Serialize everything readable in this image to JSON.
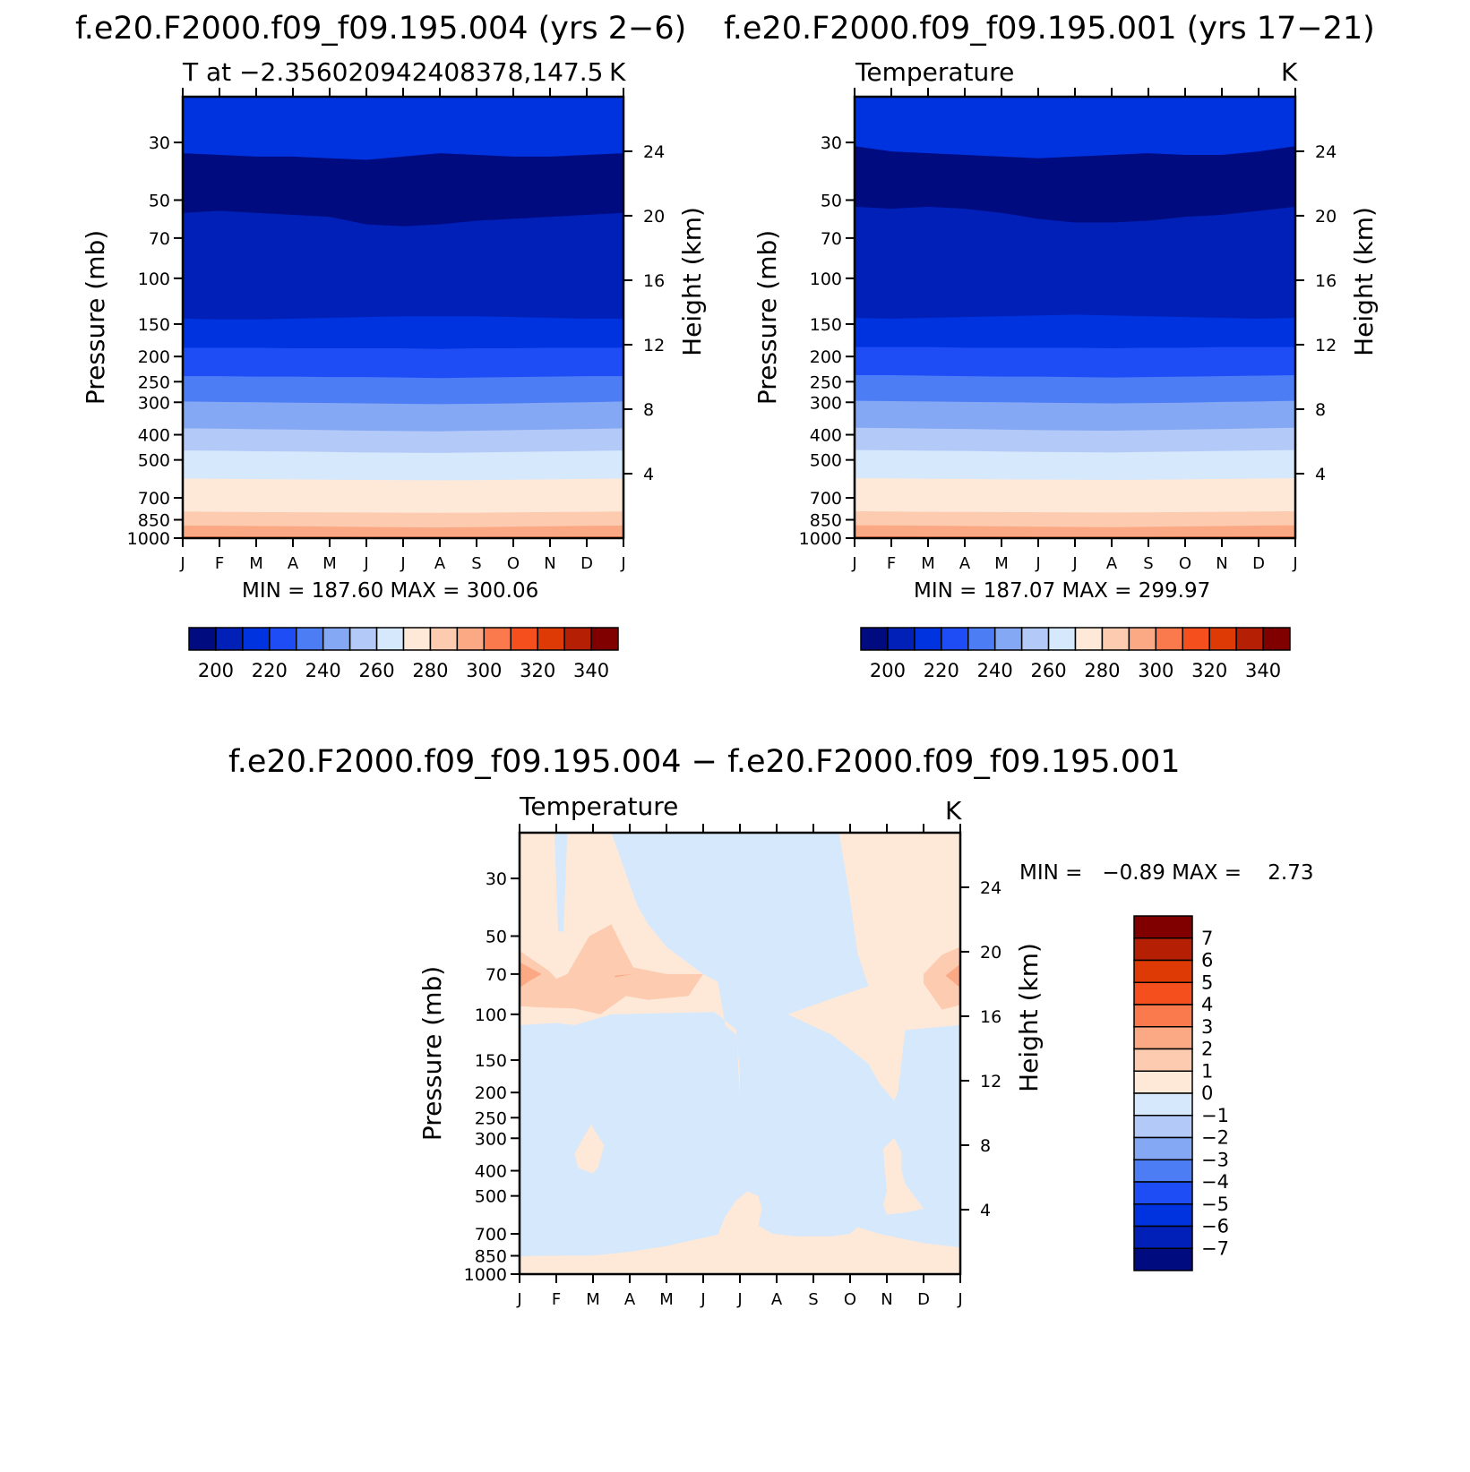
{
  "panels": [
    {
      "title": "f.e20.F2000.f09_f09.195.004 (yrs 2−6)",
      "left_string": "T at −2.356020942408378,147.5",
      "right_string": "K",
      "minmax": "MIN =  187.60 MAX =  300.06"
    },
    {
      "title": "f.e20.F2000.f09_f09.195.001 (yrs 17−21)",
      "left_string": "Temperature",
      "right_string": "K",
      "minmax": "MIN =  187.07 MAX =  299.97"
    },
    {
      "title": "f.e20.F2000.f09_f09.195.004 − f.e20.F2000.f09_f09.195.001",
      "left_string": "Temperature",
      "right_string": "K",
      "minmax": "MIN =   −0.89 MAX =    2.73"
    }
  ],
  "axes": {
    "ylabel_left": "Pressure (mb)",
    "ylabel_right": "Height (km)",
    "pressure_ticks": [
      "30",
      "50",
      "70",
      "100",
      "150",
      "200",
      "250",
      "300",
      "400",
      "500",
      "700",
      "850",
      "1000"
    ],
    "height_ticks": [
      "24",
      "20",
      "16",
      "12",
      "8",
      "4"
    ],
    "month_ticks": [
      "J",
      "F",
      "M",
      "A",
      "M",
      "J",
      "J",
      "A",
      "S",
      "O",
      "N",
      "D",
      "J"
    ]
  },
  "colorbar_abs": {
    "labels": [
      "200",
      "220",
      "240",
      "260",
      "280",
      "300",
      "320",
      "340"
    ],
    "colors": [
      "#000b80",
      "#0020b8",
      "#0033e0",
      "#1f4df5",
      "#4d7df5",
      "#85a8f5",
      "#b3c9f7",
      "#d6e8fb",
      "#fee9d9",
      "#fccbb0",
      "#fba885",
      "#fa7a4d",
      "#f54f1e",
      "#de3a05",
      "#b52005",
      "#800000"
    ]
  },
  "colorbar_diff": {
    "labels": [
      "7",
      "6",
      "5",
      "4",
      "3",
      "2",
      "1",
      "0",
      "−1",
      "−2",
      "−3",
      "−4",
      "−5",
      "−6",
      "−7"
    ],
    "colors": [
      "#800000",
      "#b52005",
      "#de3a05",
      "#f54f1e",
      "#fa7a4d",
      "#fba885",
      "#fccbb0",
      "#fee9d9",
      "#d6e8fb",
      "#b3c9f7",
      "#85a8f5",
      "#4d7df5",
      "#1f4df5",
      "#0033e0",
      "#0020b8",
      "#000b80"
    ]
  },
  "chart_data": [
    {
      "type": "heatmap",
      "title": "f.e20.F2000.f09_f09.195.004 (yrs 2−6)",
      "subtitle": "T at −2.356020942408378,147.5",
      "units": "K",
      "xlabel": "",
      "ylabel": "Pressure (mb)",
      "ylabel_right": "Height (km)",
      "x_categories": [
        "J",
        "F",
        "M",
        "A",
        "M",
        "J",
        "J",
        "A",
        "S",
        "O",
        "N",
        "D",
        "J"
      ],
      "y_scale": "log",
      "y_range": [
        1000,
        20
      ],
      "levels": [
        190,
        200,
        210,
        220,
        230,
        240,
        250,
        260,
        270,
        280,
        290,
        300
      ],
      "level_boundaries_mb": [
        {
          "level": 200,
          "p": [
            33,
            33.5,
            34,
            34,
            34.5,
            35,
            34,
            33,
            33.5,
            34,
            34,
            33.5,
            33
          ]
        },
        {
          "level": 190,
          "p": [
            56,
            55,
            56,
            57,
            58,
            62,
            63,
            62,
            60,
            59,
            58,
            57,
            56
          ]
        },
        {
          "level": 200,
          "p": [
            143,
            144,
            144,
            143,
            142,
            141,
            140,
            140,
            140,
            141,
            142,
            143,
            143
          ]
        },
        {
          "level": 210,
          "p": [
            185,
            185,
            185,
            186,
            186,
            186,
            186,
            187,
            186,
            186,
            185,
            185,
            185
          ]
        },
        {
          "level": 220,
          "p": [
            238,
            238,
            239,
            239,
            240,
            240,
            241,
            242,
            241,
            240,
            239,
            238,
            238
          ]
        },
        {
          "level": 230,
          "p": [
            298,
            299,
            300,
            301,
            302,
            303,
            304,
            305,
            304,
            303,
            301,
            300,
            298
          ]
        },
        {
          "level": 240,
          "p": [
            378,
            379,
            381,
            382,
            384,
            386,
            387,
            388,
            386,
            384,
            382,
            380,
            378
          ]
        },
        {
          "level": 250,
          "p": [
            460,
            461,
            463,
            464,
            466,
            468,
            469,
            470,
            468,
            466,
            464,
            462,
            460
          ]
        },
        {
          "level": 260,
          "p": [
            590,
            591,
            593,
            594,
            596,
            597,
            598,
            599,
            598,
            596,
            594,
            592,
            590
          ]
        },
        {
          "level": 270,
          "p": [
            790,
            792,
            794,
            795,
            796,
            797,
            798,
            799,
            798,
            796,
            794,
            792,
            790
          ]
        },
        {
          "level": 280,
          "p": [
            895,
            896,
            898,
            900,
            903,
            906,
            908,
            910,
            907,
            904,
            900,
            897,
            895
          ]
        },
        {
          "level": 290,
          "p": [
            985,
            985,
            986,
            986,
            986,
            987,
            987,
            987,
            987,
            986,
            986,
            985,
            985
          ]
        }
      ],
      "min": 187.6,
      "max": 300.06
    },
    {
      "type": "heatmap",
      "title": "f.e20.F2000.f09_f09.195.001 (yrs 17−21)",
      "subtitle": "Temperature",
      "units": "K",
      "xlabel": "",
      "ylabel": "Pressure (mb)",
      "ylabel_right": "Height (km)",
      "x_categories": [
        "J",
        "F",
        "M",
        "A",
        "M",
        "J",
        "J",
        "A",
        "S",
        "O",
        "N",
        "D",
        "J"
      ],
      "y_scale": "log",
      "y_range": [
        1000,
        20
      ],
      "levels": [
        190,
        200,
        210,
        220,
        230,
        240,
        250,
        260,
        270,
        280,
        290,
        300
      ],
      "level_boundaries_mb": [
        {
          "level": 200,
          "p": [
            31,
            32.5,
            33,
            33.5,
            34,
            34.5,
            34,
            33.5,
            33,
            33.5,
            33.5,
            32.5,
            31
          ]
        },
        {
          "level": 190,
          "p": [
            53,
            54,
            53,
            54,
            56,
            59,
            61,
            61,
            60,
            58,
            57,
            55,
            53
          ]
        },
        {
          "level": 200,
          "p": [
            142,
            143,
            142,
            141,
            140,
            139,
            138,
            139,
            140,
            141,
            142,
            143,
            142
          ]
        },
        {
          "level": 210,
          "p": [
            184,
            184,
            184,
            185,
            185,
            185,
            185,
            186,
            185,
            185,
            184,
            184,
            184
          ]
        },
        {
          "level": 220,
          "p": [
            236,
            236,
            237,
            238,
            239,
            239,
            240,
            241,
            240,
            239,
            238,
            237,
            236
          ]
        },
        {
          "level": 230,
          "p": [
            296,
            297,
            298,
            299,
            300,
            301,
            302,
            303,
            302,
            301,
            299,
            298,
            296
          ]
        },
        {
          "level": 240,
          "p": [
            376,
            377,
            379,
            380,
            382,
            384,
            385,
            386,
            384,
            382,
            380,
            378,
            376
          ]
        },
        {
          "level": 250,
          "p": [
            458,
            459,
            461,
            462,
            464,
            466,
            467,
            468,
            466,
            464,
            462,
            460,
            458
          ]
        },
        {
          "level": 260,
          "p": [
            588,
            589,
            591,
            592,
            594,
            595,
            596,
            597,
            596,
            594,
            592,
            590,
            588
          ]
        },
        {
          "level": 270,
          "p": [
            788,
            790,
            792,
            793,
            794,
            795,
            796,
            797,
            796,
            794,
            792,
            790,
            788
          ]
        },
        {
          "level": 280,
          "p": [
            893,
            894,
            896,
            898,
            901,
            904,
            906,
            908,
            905,
            902,
            898,
            895,
            893
          ]
        },
        {
          "level": 290,
          "p": [
            984,
            984,
            985,
            985,
            985,
            986,
            986,
            986,
            986,
            985,
            985,
            984,
            984
          ]
        }
      ],
      "min": 187.07,
      "max": 299.97
    },
    {
      "type": "heatmap",
      "title": "f.e20.F2000.f09_f09.195.004 − f.e20.F2000.f09_f09.195.001",
      "subtitle": "Temperature",
      "units": "K",
      "xlabel": "",
      "ylabel": "Pressure (mb)",
      "ylabel_right": "Height (km)",
      "x_categories": [
        "J",
        "F",
        "M",
        "A",
        "M",
        "J",
        "J",
        "A",
        "S",
        "O",
        "N",
        "D",
        "J"
      ],
      "y_scale": "log",
      "y_range": [
        1000,
        20
      ],
      "levels": [
        -1,
        0,
        1,
        2,
        3
      ],
      "regions": [
        {
          "range": "0 to 1",
          "month_index_pressure_mb": [
            [
              0,
              20
            ],
            [
              0.95,
              20
            ],
            [
              1.05,
              48
            ],
            [
              1.2,
              48
            ],
            [
              1.3,
              20
            ],
            [
              2.5,
              20
            ],
            [
              3.2,
              38
            ],
            [
              3.5,
              45
            ],
            [
              4,
              55
            ],
            [
              5,
              70
            ],
            [
              5.4,
              75
            ],
            [
              5.6,
              110
            ],
            [
              5.9,
              120
            ],
            [
              6,
              168
            ],
            [
              6,
              210
            ],
            [
              5.9,
              115
            ],
            [
              5.5,
              103
            ],
            [
              5.3,
              98
            ],
            [
              2.5,
              100
            ],
            [
              1.5,
              110
            ],
            [
              1,
              108
            ],
            [
              0,
              110
            ]
          ]
        },
        {
          "range": "0 to 1",
          "month_index_pressure_mb": [
            [
              8.7,
              20
            ],
            [
              12,
              20
            ],
            [
              12,
              110
            ],
            [
              10.5,
              115
            ],
            [
              10.3,
              200
            ],
            [
              10.2,
              215
            ],
            [
              9.8,
              185
            ],
            [
              9.5,
              155
            ],
            [
              8.5,
              120
            ],
            [
              7.3,
              100
            ],
            [
              8.4,
              88
            ],
            [
              9.5,
              78
            ],
            [
              9.2,
              58
            ],
            [
              9,
              36
            ]
          ]
        },
        {
          "range": "0 to 1",
          "month_index_pressure_mb": [
            [
              1.5,
              345
            ],
            [
              1.7,
              305
            ],
            [
              1.95,
              265
            ],
            [
              2.3,
              320
            ],
            [
              2.15,
              385
            ],
            [
              2,
              410
            ],
            [
              1.6,
              390
            ]
          ]
        },
        {
          "range": "0 to 1",
          "month_index_pressure_mb": [
            [
              9.9,
              330
            ],
            [
              10.2,
              300
            ],
            [
              10.4,
              340
            ],
            [
              10.4,
              400
            ],
            [
              10.5,
              450
            ],
            [
              11,
              560
            ],
            [
              10.5,
              580
            ],
            [
              10,
              590
            ],
            [
              9.9,
              540
            ],
            [
              10,
              480
            ]
          ]
        },
        {
          "range": "0 to 1",
          "month_index_pressure_mb": [
            [
              0,
              855
            ],
            [
              0.5,
              850
            ],
            [
              2,
              848
            ],
            [
              3,
              820
            ],
            [
              4,
              780
            ],
            [
              5,
              725
            ],
            [
              5.4,
              705
            ],
            [
              5.6,
              600
            ],
            [
              5.9,
              520
            ],
            [
              6.2,
              480
            ],
            [
              6.5,
              500
            ],
            [
              6.6,
              560
            ],
            [
              6.5,
              650
            ],
            [
              6.9,
              700
            ],
            [
              7.5,
              715
            ],
            [
              8.5,
              715
            ],
            [
              9,
              700
            ],
            [
              9.2,
              660
            ],
            [
              9.8,
              700
            ],
            [
              11,
              760
            ],
            [
              12,
              790
            ],
            [
              12,
              1000
            ],
            [
              0,
              1000
            ]
          ]
        },
        {
          "range": "1 to 2",
          "month_index_pressure_mb": [
            [
              0,
              57
            ],
            [
              0.8,
              68
            ],
            [
              1,
              73
            ],
            [
              1.3,
              70
            ],
            [
              1.9,
              50
            ],
            [
              2.5,
              45
            ],
            [
              2.8,
              55
            ],
            [
              3.1,
              66
            ],
            [
              4,
              70
            ],
            [
              5,
              70
            ],
            [
              4.6,
              85
            ],
            [
              3.5,
              88
            ],
            [
              2.9,
              85
            ],
            [
              2.2,
              100
            ],
            [
              1.5,
              95
            ],
            [
              0.5,
              94
            ],
            [
              0,
              93
            ]
          ]
        },
        {
          "range": "1 to 2",
          "month_index_pressure_mb": [
            [
              11,
              70
            ],
            [
              11.5,
              59
            ],
            [
              12,
              55
            ],
            [
              12,
              92
            ],
            [
              11.5,
              96
            ],
            [
              11,
              76
            ]
          ]
        },
        {
          "range": "2 to 3",
          "month_index_pressure_mb": [
            [
              0,
              63
            ],
            [
              0.6,
              70
            ],
            [
              0.3,
              74
            ],
            [
              0,
              79
            ]
          ]
        },
        {
          "range": "2 to 3",
          "month_index_pressure_mb": [
            [
              2.6,
              71
            ],
            [
              3.1,
              70
            ],
            [
              2.6,
              72
            ]
          ]
        },
        {
          "range": "2 to 3",
          "month_index_pressure_mb": [
            [
              12,
              64
            ],
            [
              11.6,
              71
            ],
            [
              12,
              79
            ]
          ]
        }
      ],
      "min": -0.89,
      "max": 2.73
    }
  ]
}
